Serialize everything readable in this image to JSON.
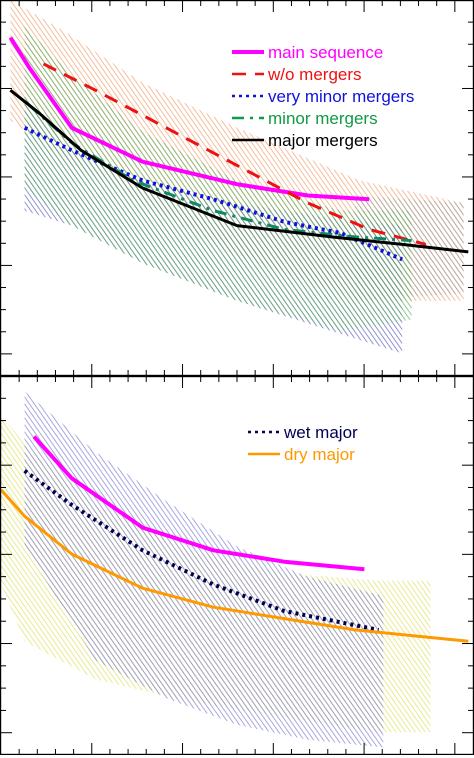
{
  "chart_data": [
    {
      "type": "line",
      "panel": "top",
      "xlim": [
        0,
        1
      ],
      "ylim": [
        0,
        1
      ],
      "grid": false,
      "legend": {
        "placement": "top-right",
        "entries": [
          {
            "label": "main sequence",
            "color": "#ff00ff",
            "style": "solid"
          },
          {
            "label": "w/o mergers",
            "color": "#ee1111",
            "style": "dashed"
          },
          {
            "label": "very minor mergers",
            "color": "#1111dd",
            "style": "dotted"
          },
          {
            "label": "minor mergers",
            "color": "#119944",
            "style": "dashdot"
          },
          {
            "label": "major mergers",
            "color": "#000000",
            "style": "solid"
          }
        ]
      },
      "bands": [
        {
          "color": "#f0a070",
          "x": [
            0.02,
            0.13,
            0.3,
            0.5,
            0.76,
            0.98
          ],
          "upper": [
            1.0,
            0.92,
            0.78,
            0.66,
            0.52,
            0.46
          ],
          "lower": [
            0.68,
            0.58,
            0.46,
            0.32,
            0.2,
            0.2
          ]
        },
        {
          "color": "#a0a0a0",
          "x": [
            0.75,
            0.98
          ],
          "upper": [
            0.48,
            0.46
          ],
          "lower": [
            0.2,
            0.22
          ]
        },
        {
          "color": "#6060c0",
          "x": [
            0.05,
            0.15,
            0.3,
            0.5,
            0.7,
            0.85
          ],
          "upper": [
            0.74,
            0.6,
            0.52,
            0.46,
            0.42,
            0.4
          ],
          "lower": [
            0.44,
            0.4,
            0.3,
            0.2,
            0.12,
            0.06
          ]
        },
        {
          "color": "#60b060",
          "x": [
            0.05,
            0.15,
            0.3,
            0.5,
            0.72,
            0.87
          ],
          "upper": [
            0.93,
            0.8,
            0.65,
            0.52,
            0.44,
            0.44
          ],
          "lower": [
            0.5,
            0.4,
            0.3,
            0.2,
            0.12,
            0.15
          ]
        }
      ],
      "series": [
        {
          "color": "#ff00ff",
          "style": "solid",
          "width": 4,
          "x": [
            0.02,
            0.06,
            0.15,
            0.3,
            0.5,
            0.65,
            0.78
          ],
          "y": [
            0.9,
            0.82,
            0.66,
            0.57,
            0.51,
            0.48,
            0.47
          ]
        },
        {
          "color": "#ee1111",
          "style": "dashed",
          "width": 3,
          "x": [
            0.09,
            0.2,
            0.35,
            0.5,
            0.65,
            0.78,
            0.9
          ],
          "y": [
            0.83,
            0.76,
            0.66,
            0.56,
            0.46,
            0.39,
            0.35
          ]
        },
        {
          "color": "#1111dd",
          "style": "dotted",
          "width": 4,
          "x": [
            0.05,
            0.15,
            0.3,
            0.45,
            0.6,
            0.72,
            0.85
          ],
          "y": [
            0.66,
            0.6,
            0.52,
            0.47,
            0.41,
            0.38,
            0.31
          ]
        },
        {
          "color": "#118866",
          "style": "dashdot",
          "width": 3,
          "x": [
            0.06,
            0.15,
            0.28,
            0.45,
            0.6,
            0.75,
            0.87
          ],
          "y": [
            0.72,
            0.62,
            0.52,
            0.44,
            0.39,
            0.37,
            0.36
          ]
        },
        {
          "color": "#000000",
          "style": "solid",
          "width": 3,
          "x": [
            0.02,
            0.08,
            0.17,
            0.3,
            0.5,
            0.7,
            0.85,
            0.99
          ],
          "y": [
            0.76,
            0.7,
            0.6,
            0.5,
            0.4,
            0.37,
            0.35,
            0.33
          ]
        }
      ]
    },
    {
      "type": "line",
      "panel": "bottom",
      "xlim": [
        0,
        1
      ],
      "ylim": [
        0,
        1
      ],
      "grid": false,
      "legend": {
        "placement": "top-right",
        "entries": [
          {
            "label": "wet major",
            "color": "#000055",
            "style": "dotted"
          },
          {
            "label": "dry major",
            "color": "#ff9900",
            "style": "solid"
          }
        ]
      },
      "bands": [
        {
          "color": "#e0e060",
          "x": [
            0.0,
            0.05,
            0.2,
            0.4,
            0.6,
            0.8,
            0.91
          ],
          "upper": [
            0.9,
            0.82,
            0.66,
            0.54,
            0.48,
            0.46,
            0.46
          ],
          "lower": [
            0.45,
            0.3,
            0.2,
            0.14,
            0.1,
            0.06,
            0.06
          ]
        },
        {
          "color": "#8080d0",
          "x": [
            0.05,
            0.2,
            0.35,
            0.5,
            0.65,
            0.81
          ],
          "upper": [
            0.96,
            0.8,
            0.67,
            0.55,
            0.47,
            0.42
          ],
          "lower": [
            0.55,
            0.25,
            0.15,
            0.08,
            0.04,
            0.02
          ]
        }
      ],
      "series": [
        {
          "color": "#ff00ff",
          "style": "solid",
          "width": 4,
          "x": [
            0.07,
            0.15,
            0.3,
            0.45,
            0.6,
            0.77
          ],
          "y": [
            0.84,
            0.73,
            0.6,
            0.54,
            0.51,
            0.49
          ]
        },
        {
          "color": "#000055",
          "style": "dotted",
          "width": 4,
          "x": [
            0.05,
            0.15,
            0.3,
            0.45,
            0.6,
            0.8
          ],
          "y": [
            0.75,
            0.66,
            0.54,
            0.45,
            0.38,
            0.33
          ]
        },
        {
          "color": "#ff9900",
          "style": "solid",
          "width": 3,
          "x": [
            0.0,
            0.05,
            0.15,
            0.3,
            0.45,
            0.6,
            0.75,
            0.99
          ],
          "y": [
            0.7,
            0.63,
            0.53,
            0.44,
            0.39,
            0.36,
            0.33,
            0.3
          ]
        }
      ]
    }
  ]
}
